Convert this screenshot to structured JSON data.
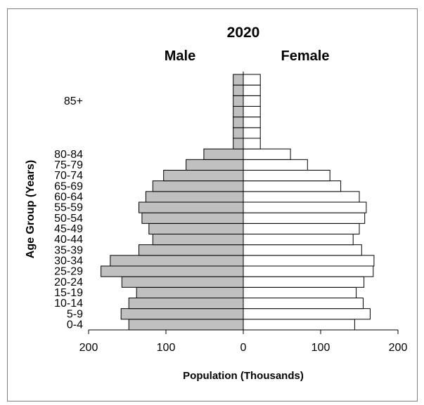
{
  "chart_data": {
    "type": "bar",
    "orientation": "horizontal-population-pyramid",
    "title": "2020",
    "left_label": "Male",
    "right_label": "Female",
    "xlabel": "Population (Thousands)",
    "ylabel": "Age Group (Years)",
    "xlim": [
      -200,
      200
    ],
    "x_ticks": [
      {
        "value": -200,
        "label": "200"
      },
      {
        "value": -100,
        "label": "100"
      },
      {
        "value": 0,
        "label": "0"
      },
      {
        "value": 100,
        "label": "100"
      },
      {
        "value": 200,
        "label": "200"
      }
    ],
    "categories": [
      "0-4",
      "5-9",
      "10-14",
      "15-19",
      "20-24",
      "25-29",
      "30-34",
      "35-39",
      "40-44",
      "45-49",
      "50-54",
      "55-59",
      "60-64",
      "65-69",
      "70-74",
      "75-79",
      "80-84",
      "",
      "",
      "",
      "",
      "85+",
      "",
      ""
    ],
    "series": [
      {
        "name": "Male",
        "color": "#c0c0c0",
        "values": [
          148,
          158,
          148,
          138,
          157,
          184,
          172,
          135,
          117,
          122,
          131,
          135,
          126,
          117,
          103,
          74,
          51,
          13,
          13,
          13,
          13,
          13,
          13,
          13
        ]
      },
      {
        "name": "Female",
        "color": "#ffffff",
        "values": [
          144,
          164,
          155,
          146,
          156,
          168,
          169,
          153,
          142,
          150,
          157,
          159,
          150,
          126,
          112,
          83,
          61,
          22,
          22,
          22,
          22,
          22,
          22,
          22
        ]
      }
    ],
    "grid": false
  }
}
